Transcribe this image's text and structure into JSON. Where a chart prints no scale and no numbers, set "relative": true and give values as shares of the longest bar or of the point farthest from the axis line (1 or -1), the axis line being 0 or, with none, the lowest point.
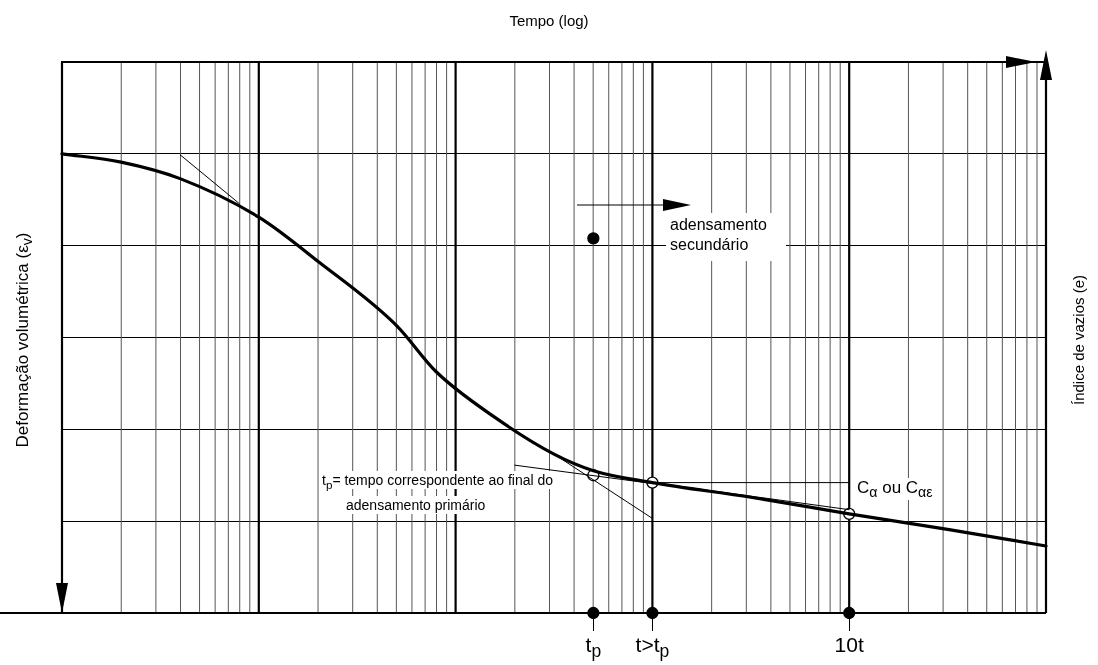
{
  "chart_data": {
    "type": "line",
    "ylabel": "Deformação volumétrica (ε$_{v}$)",
    "y2label": "Índice de vazios (e)",
    "annotations": [
      "Tempo (log)",
      "adensamento secundário",
      "t$_{p}$= tempo correspondente ao final do adensamento primário",
      "C$_{α}$ ou C$_{αε}$"
    ],
    "relative": true,
    "categories": [
      null,
      null,
      null,
      null,
      null,
      null,
      null,
      null,
      null,
      null,
      null,
      null,
      null,
      null,
      null,
      null,
      null,
      null,
      null,
      null,
      null,
      null,
      null,
      null,
      null,
      null,
      null,
      "t$_{p}$",
      null,
      null,
      "t>t$_{p}$",
      null,
      null,
      null,
      null,
      null,
      null,
      null,
      null,
      null,
      "10t",
      null,
      null,
      null,
      null,
      null,
      null,
      null,
      null,
      null,
      null
    ],
    "grid": true,
    "legend": false,
    "series": [
      {
        "color": "#000000",
        "marker": "none",
        "values": [
          1,
          null,
          null,
          0.982,
          null,
          null,
          0.946,
          null,
          null,
          null,
          0.862,
          null,
          null,
          0.766,
          null,
          null,
          null,
          0.626,
          null,
          0.526,
          null,
          null,
          0.426,
          null,
          null,
          0.346,
          null,
          0.31,
          null,
          null,
          0.284,
          null,
          null,
          null,
          null,
          0.252,
          null,
          null,
          null,
          null,
          0.216,
          null,
          null,
          null,
          null,
          0.182,
          null,
          null,
          null,
          null,
          0.146
        ]
      },
      {
        "color": "#000000",
        "marker": "none",
        "values": [
          null,
          null,
          null,
          null,
          null,
          null,
          0.998,
          null,
          null,
          0.892,
          null,
          null,
          null,
          null,
          null,
          null,
          null,
          null,
          null,
          null,
          null,
          null,
          null,
          null,
          null,
          null,
          null,
          null,
          null,
          null,
          null,
          null,
          null,
          null,
          null,
          null,
          null,
          null,
          null,
          null,
          null,
          null,
          null,
          null,
          null,
          null,
          null,
          null,
          null,
          null,
          null
        ]
      },
      {
        "type": "line",
        "color": "#000000",
        "marker": "none",
        "values": [
          null,
          null,
          null,
          null,
          null,
          null,
          null,
          null,
          null,
          null,
          null,
          null,
          null,
          null,
          null,
          null,
          null,
          null,
          null,
          null,
          null,
          null,
          null,
          null,
          null,
          0.346,
          null,
          null,
          null,
          null,
          0.206,
          null,
          null,
          null,
          null,
          null,
          null,
          null,
          null,
          null,
          null,
          null,
          null,
          null,
          null,
          null,
          null,
          null,
          null,
          null,
          null
        ]
      },
      {
        "type": "line",
        "color": "#000000",
        "marker": "none",
        "values": [
          null,
          null,
          null,
          null,
          null,
          null,
          null,
          null,
          null,
          null,
          null,
          null,
          null,
          null,
          null,
          null,
          null,
          null,
          null,
          null,
          null,
          null,
          null,
          0.322,
          null,
          null,
          null,
          null,
          null,
          null,
          0.282,
          null,
          null,
          null,
          null,
          null,
          null,
          null,
          null,
          null,
          null,
          null,
          null,
          null,
          null,
          null,
          null,
          null,
          null,
          null,
          null
        ]
      },
      {
        "type": "line",
        "color": "#000000",
        "marker": "none",
        "values": [
          null,
          null,
          null,
          null,
          null,
          null,
          null,
          null,
          null,
          null,
          null,
          null,
          null,
          null,
          null,
          null,
          null,
          null,
          null,
          null,
          null,
          null,
          null,
          null,
          null,
          null,
          null,
          null,
          null,
          null,
          0.284,
          null,
          null,
          null,
          null,
          null,
          null,
          null,
          null,
          null,
          0.284,
          null,
          null,
          null,
          null,
          null,
          null,
          null,
          null,
          null,
          null
        ]
      },
      {
        "type": "line",
        "color": "#000000",
        "marker": "none",
        "values": [
          null,
          null,
          null,
          null,
          null,
          null,
          null,
          null,
          null,
          null,
          null,
          null,
          null,
          null,
          null,
          null,
          null,
          null,
          null,
          null,
          null,
          null,
          null,
          null,
          null,
          null,
          null,
          null,
          null,
          null,
          0.284,
          null,
          null,
          null,
          null,
          null,
          null,
          null,
          null,
          null,
          0.225,
          null,
          null,
          null,
          null,
          null,
          null,
          null,
          null,
          null,
          null
        ]
      },
      {
        "type": "scatter",
        "color": "#ffffff",
        "marker": "circle",
        "values": [
          null,
          null,
          null,
          null,
          null,
          null,
          null,
          null,
          null,
          null,
          null,
          null,
          null,
          null,
          null,
          null,
          null,
          null,
          null,
          null,
          null,
          null,
          null,
          null,
          null,
          null,
          null,
          0.3,
          null,
          null,
          0.284,
          null,
          null,
          null,
          null,
          null,
          null,
          null,
          null,
          null,
          0.216,
          null,
          null,
          null,
          null,
          null,
          null,
          null,
          null,
          null,
          null
        ]
      },
      {
        "type": "scatter",
        "color": "#000000",
        "marker": "circle",
        "values": [
          null,
          null,
          null,
          null,
          null,
          null,
          null,
          null,
          null,
          null,
          null,
          null,
          null,
          null,
          null,
          null,
          null,
          null,
          null,
          null,
          null,
          null,
          null,
          null,
          null,
          null,
          null,
          0,
          null,
          null,
          0,
          null,
          null,
          null,
          null,
          null,
          null,
          null,
          null,
          null,
          0,
          null,
          null,
          null,
          null,
          null,
          null,
          null,
          null,
          null,
          null
        ]
      },
      {
        "type": "scatter",
        "color": "#000000",
        "marker": "circle",
        "values": [
          null,
          null,
          null,
          null,
          null,
          null,
          null,
          null,
          null,
          null,
          null,
          null,
          null,
          null,
          null,
          null,
          null,
          null,
          null,
          null,
          null,
          null,
          null,
          null,
          null,
          null,
          null,
          0.816,
          null,
          null,
          null,
          null,
          null,
          null,
          null,
          null,
          null,
          null,
          null,
          null,
          null,
          null,
          null,
          null,
          null,
          null,
          null,
          null,
          null,
          null,
          null
        ]
      }
    ]
  }
}
